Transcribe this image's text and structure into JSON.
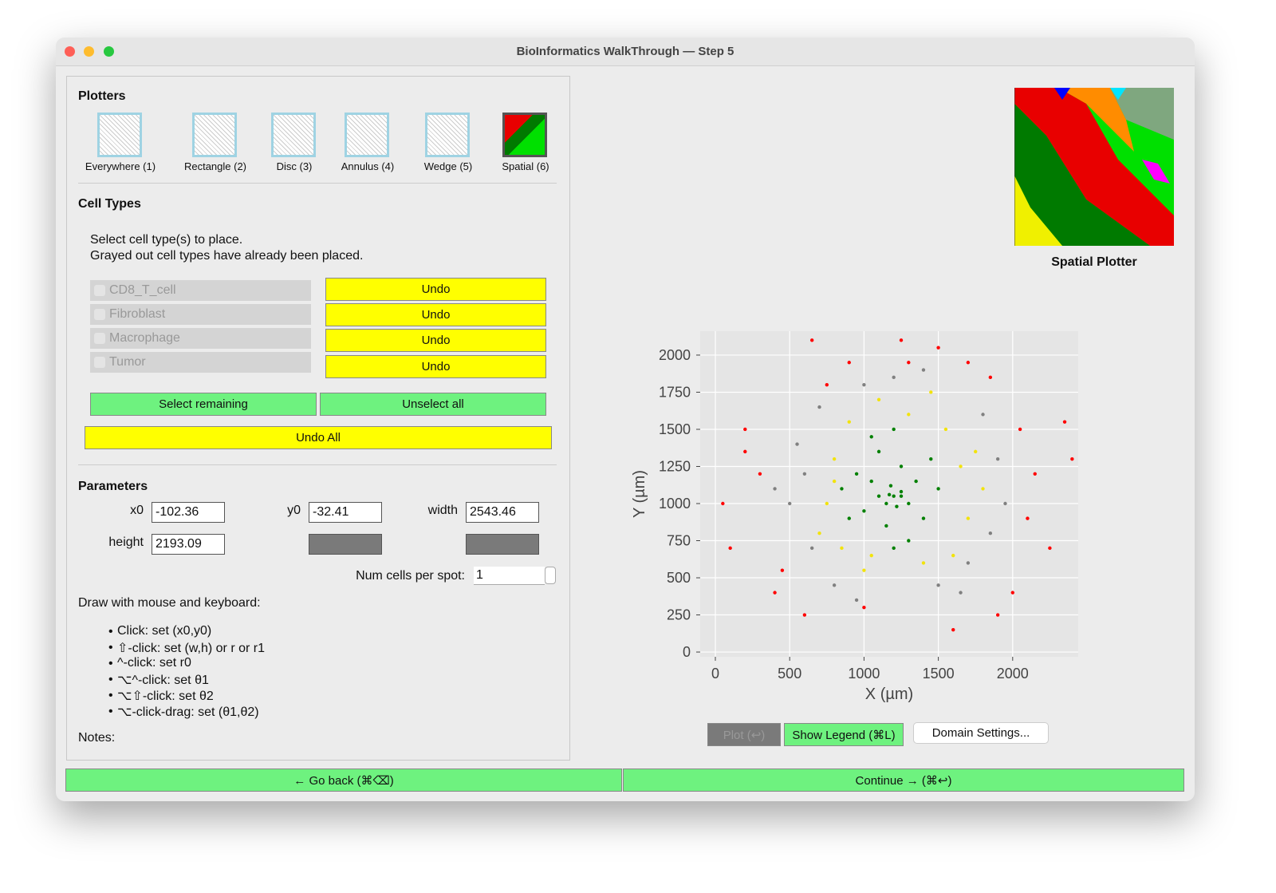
{
  "window": {
    "title": "BioInformatics WalkThrough — Step 5"
  },
  "plotters": {
    "heading": "Plotters",
    "items": [
      "Everywhere (1)",
      "Rectangle (2)",
      "Disc (3)",
      "Annulus (4)",
      "Wedge (5)",
      "Spatial (6)"
    ]
  },
  "cell_types": {
    "heading": "Cell Types",
    "instructions": [
      "Select cell type(s) to place.",
      "Grayed out cell types have already been placed."
    ],
    "types": [
      "CD8_T_cell",
      "Fibroblast",
      "Macrophage",
      "Tumor"
    ],
    "undo": [
      "Undo",
      "Undo",
      "Undo",
      "Undo"
    ],
    "select_remaining": "Select remaining",
    "unselect_all": "Unselect all",
    "undo_all": "Undo All"
  },
  "parameters": {
    "heading": "Parameters",
    "fields": [
      {
        "label": "x0",
        "value": "-102.36"
      },
      {
        "label": "y0",
        "value": "-32.41"
      },
      {
        "label": "width",
        "value": "2543.46"
      },
      {
        "label": "height",
        "value": "2193.09"
      }
    ],
    "num_cells_label": "Num cells per spot:",
    "num_cells": "1"
  },
  "instructions": {
    "heading": "Draw with mouse and keyboard:",
    "items": [
      "Click: set (x0,y0)",
      "⇧-click: set (w,h) or r or r1",
      "^-click: set r0",
      "⌥^-click: set θ1",
      "⌥⇧-click: set θ2",
      "⌥-click-drag: set (θ1,θ2)"
    ],
    "notes": "Notes:"
  },
  "preview": {
    "caption": "Spatial Plotter"
  },
  "chart_data": {
    "type": "scatter",
    "xlabel": "X (µm)",
    "ylabel": "Y (µm)",
    "xlim": [
      -102,
      2441
    ],
    "ylim": [
      -32,
      2161
    ],
    "xticks": [
      0,
      500,
      1000,
      1500,
      2000
    ],
    "yticks": [
      0,
      250,
      500,
      750,
      1000,
      1250,
      1500,
      1750,
      2000
    ],
    "grid": true,
    "series": [
      {
        "color": "#808080",
        "x": [
          600,
          1900,
          1700,
          650,
          1000,
          1500,
          500,
          1950,
          800,
          1800,
          550,
          1200,
          700,
          1650,
          1850,
          950,
          400,
          1400
        ],
        "y": [
          1200,
          1300,
          600,
          700,
          1800,
          450,
          1000,
          1000,
          450,
          1600,
          1400,
          1850,
          1650,
          400,
          800,
          350,
          1100,
          1900
        ]
      },
      {
        "color": "#ff0000",
        "x": [
          650,
          1500,
          1300,
          200,
          50,
          100,
          2350,
          2050,
          2150,
          2250,
          400,
          600,
          1000,
          1600,
          2000,
          300,
          750,
          1850,
          1700,
          900,
          1250,
          2400,
          450,
          1900,
          200,
          2100
        ],
        "y": [
          2100,
          2050,
          1950,
          1500,
          1000,
          700,
          1550,
          1500,
          1200,
          700,
          400,
          250,
          300,
          150,
          400,
          1200,
          1800,
          1850,
          1950,
          1950,
          2100,
          1300,
          550,
          250,
          1350,
          900
        ]
      },
      {
        "color": "#f2e30c",
        "x": [
          800,
          1650,
          1700,
          850,
          1100,
          1400,
          750,
          1800,
          1000,
          1550,
          700,
          1300,
          900,
          1600,
          1750,
          1050,
          800,
          1450
        ],
        "y": [
          1300,
          1250,
          900,
          700,
          1700,
          600,
          1000,
          1100,
          550,
          1500,
          800,
          1600,
          1550,
          650,
          1350,
          650,
          1150,
          1750
        ]
      },
      {
        "color": "#008000",
        "x": [
          1200,
          1150,
          1250,
          1180,
          1220,
          1100,
          1300,
          1050,
          1350,
          1000,
          1150,
          1250,
          950,
          1400,
          1200,
          1100,
          1450,
          900,
          1300,
          1050,
          1500,
          1200,
          850,
          1250,
          1170
        ],
        "y": [
          1050,
          1000,
          1080,
          1120,
          980,
          1050,
          1000,
          1150,
          1150,
          950,
          850,
          1250,
          1200,
          900,
          700,
          1350,
          1300,
          900,
          750,
          1450,
          1100,
          1500,
          1100,
          1050,
          1060
        ]
      }
    ]
  },
  "buttons": {
    "plot": "Plot (↩)",
    "legend": "Show Legend (⌘L)",
    "domain": "Domain Settings...",
    "back": "← Go back (⌘⌫)",
    "continue": "Continue → (⌘↩)"
  }
}
